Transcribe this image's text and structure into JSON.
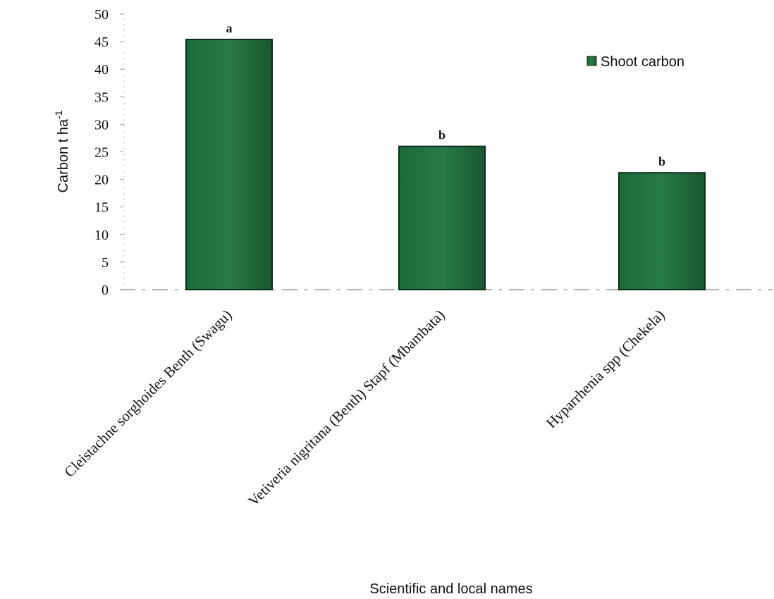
{
  "chart_data": {
    "type": "bar",
    "categories": [
      "Cleistachne sorghoides Benth (Swagu)",
      "Vetiveria nigritana (Benth) Stapf (Mbambata)",
      "Hyparrhenia spp (Chekela)"
    ],
    "series": [
      {
        "name": "Shoot carbon",
        "values": [
          45.4,
          26.0,
          21.2
        ]
      }
    ],
    "significance_letters": [
      "a",
      "b",
      "b"
    ],
    "xlabel": "Scientific and local names",
    "ylabel": "Carbon t ha",
    "ylabel_superscript": "-1",
    "ylim": [
      0,
      50
    ],
    "yticks": [
      0,
      5,
      10,
      15,
      20,
      25,
      30,
      35,
      40,
      45,
      50
    ],
    "legend_position": "top-right",
    "grid": false,
    "colors": {
      "bar_fill": "#1f6e3c",
      "bar_stroke": "#0b2e18"
    }
  }
}
